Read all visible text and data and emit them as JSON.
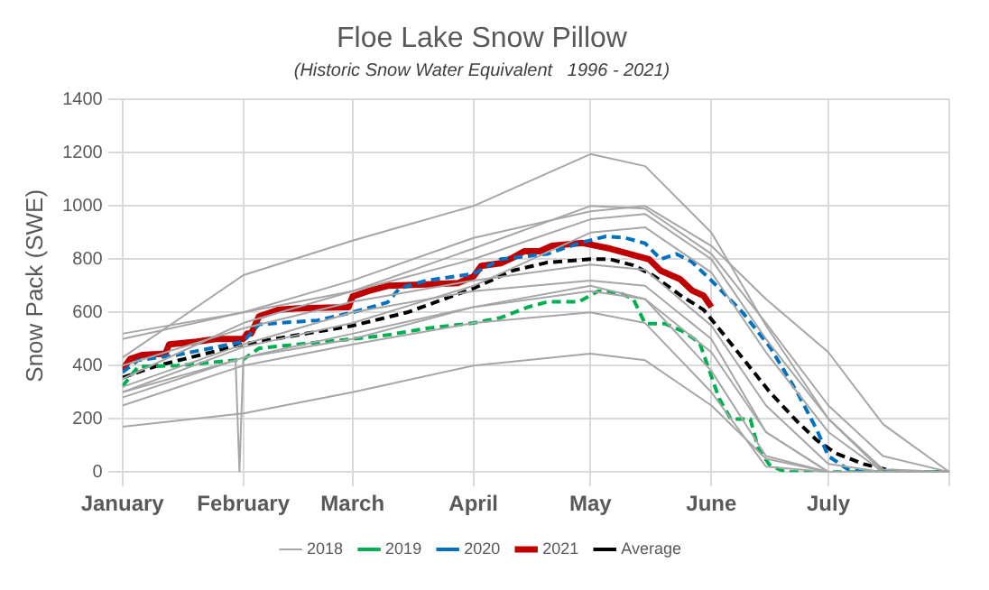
{
  "chart_data": {
    "type": "line",
    "title": "Floe Lake Snow Pillow",
    "subtitle": "(Historic Snow Water Equivalent   1996 - 2021)",
    "ylabel": "Snow Pack (SWE)",
    "x": [
      "--01-01",
      "--02-01",
      "--03-01",
      "--04-01",
      "--05-01",
      "--05-15",
      "--06-01",
      "--06-15",
      "--07-01",
      "--07-15",
      "--08-01"
    ],
    "xlim": [
      "--01-01",
      "--08-01"
    ],
    "xticks": [
      {
        "value": "--01-01",
        "label": "January"
      },
      {
        "value": "--02-01",
        "label": "February"
      },
      {
        "value": "--03-01",
        "label": "March"
      },
      {
        "value": "--04-01",
        "label": "April"
      },
      {
        "value": "--05-01",
        "label": "May"
      },
      {
        "value": "--06-01",
        "label": "June"
      },
      {
        "value": "--07-01",
        "label": "July"
      },
      {
        "value": "--08-01",
        "label": null
      }
    ],
    "ylim": [
      0,
      1400
    ],
    "yticks": [
      0,
      200,
      400,
      600,
      800,
      1000,
      1200,
      1400
    ],
    "grid": true,
    "legend": "bottom",
    "marker": "none",
    "series": [
      {
        "color": "#a6a6a6",
        "values": [
          430,
          740,
          870,
          1000,
          1195,
          1150,
          900,
          550,
          200,
          0,
          0
        ]
      },
      {
        "color": "#a6a6a6",
        "values": [
          500,
          600,
          720,
          880,
          980,
          1000,
          850,
          650,
          450,
          180,
          0
        ]
      },
      {
        "color": "#a6a6a6",
        "values": [
          170,
          220,
          300,
          400,
          445,
          420,
          250,
          50,
          0,
          0,
          0
        ]
      },
      {
        "color": "#a6a6a6",
        "values": [
          280,
          430,
          500,
          620,
          680,
          650,
          450,
          150,
          0,
          0,
          0
        ]
      },
      {
        "color": "#a6a6a6",
        "values": [
          520,
          600,
          680,
          800,
          950,
          970,
          800,
          500,
          200,
          10,
          0
        ]
      },
      {
        "color": "#a6a6a6",
        "values": [
          250,
          400,
          480,
          560,
          600,
          560,
          300,
          20,
          0,
          0,
          0
        ]
      },
      {
        "color": "#a6a6a6",
        "values": [
          350,
          560,
          680,
          840,
          1000,
          990,
          820,
          560,
          250,
          60,
          0
        ]
      },
      {
        "color": "#a6a6a6",
        "values": [
          400,
          540,
          640,
          720,
          780,
          760,
          550,
          250,
          30,
          0,
          0
        ]
      },
      {
        "color": "#a6a6a6",
        "values": [
          320,
          480,
          600,
          680,
          720,
          700,
          500,
          150,
          0,
          0,
          0
        ]
      },
      {
        "color": "#a6a6a6",
        "x": [
          "--01-01",
          "--01-30",
          "--01-31",
          "--02-01",
          "--03-01",
          "--04-01",
          "--05-01",
          "--05-15",
          "--06-01",
          "--06-15",
          "--07-01"
        ],
        "values": [
          300,
          420,
          0,
          430,
          520,
          620,
          700,
          650,
          380,
          60,
          0
        ]
      },
      {
        "name": "2018",
        "color": "#a6a6a6",
        "values": [
          300,
          470,
          560,
          700,
          900,
          920,
          750,
          450,
          150,
          0,
          0
        ]
      },
      {
        "name": "2019",
        "color": "#00b050",
        "line_style": "dashed",
        "x": [
          "--01-01",
          "--01-05",
          "--01-15",
          "--02-01",
          "--02-05",
          "--02-15",
          "--03-01",
          "--03-10",
          "--03-20",
          "--04-01",
          "--04-08",
          "--04-15",
          "--04-20",
          "--04-28",
          "--05-03",
          "--05-09",
          "--05-12",
          "--05-15",
          "--05-20",
          "--05-25",
          "--05-29",
          "--06-03",
          "--06-06",
          "--06-11",
          "--06-13",
          "--06-16",
          "--06-20",
          "--08-01"
        ],
        "values": [
          322,
          396,
          400,
          423,
          465,
          480,
          500,
          515,
          540,
          560,
          580,
          620,
          640,
          640,
          680,
          670,
          650,
          558,
          558,
          527,
          485,
          276,
          199,
          199,
          88,
          25,
          0,
          0
        ]
      },
      {
        "name": "2020",
        "color": "#0070c0",
        "line_style": "dashed",
        "x": [
          "--01-01",
          "--01-05",
          "--01-15",
          "--02-01",
          "--02-05",
          "--02-20",
          "--03-01",
          "--03-10",
          "--03-13",
          "--03-20",
          "--04-01",
          "--04-08",
          "--04-20",
          "--04-28",
          "--05-05",
          "--05-10",
          "--05-15",
          "--05-19",
          "--05-23",
          "--05-27",
          "--06-01",
          "--06-09",
          "--06-16",
          "--06-23",
          "--06-28",
          "--07-01",
          "--07-06",
          "--07-10",
          "--08-01"
        ],
        "values": [
          375,
          420,
          440,
          490,
          555,
          570,
          600,
          638,
          690,
          720,
          745,
          800,
          820,
          860,
          886,
          880,
          860,
          800,
          820,
          790,
          720,
          600,
          470,
          300,
          160,
          60,
          10,
          0,
          0
        ]
      },
      {
        "name": "2021",
        "color": "#c00000",
        "line_style": "solid",
        "x": [
          "--01-01",
          "--01-03",
          "--01-06",
          "--01-12",
          "--01-13",
          "--01-20",
          "--01-25",
          "--02-01",
          "--02-02",
          "--02-03",
          "--02-05",
          "--02-10",
          "--02-15",
          "--02-28",
          "--03-01",
          "--03-05",
          "--03-10",
          "--03-20",
          "--03-28",
          "--04-01",
          "--04-03",
          "--04-08",
          "--04-11",
          "--04-14",
          "--04-18",
          "--04-21",
          "--04-29",
          "--05-06",
          "--05-16",
          "--05-19",
          "--05-24",
          "--05-27",
          "--05-30",
          "--06-01"
        ],
        "values": [
          385,
          425,
          440,
          445,
          480,
          490,
          500,
          500,
          520,
          520,
          585,
          610,
          615,
          620,
          660,
          680,
          700,
          705,
          710,
          735,
          775,
          785,
          805,
          830,
          830,
          850,
          861,
          840,
          800,
          757,
          725,
          683,
          663,
          620
        ]
      },
      {
        "name": "Average",
        "color": "#000000",
        "line_style": "dashed",
        "x": [
          "--01-01",
          "--01-10",
          "--02-01",
          "--03-01",
          "--03-15",
          "--04-01",
          "--04-11",
          "--04-20",
          "--05-01",
          "--05-06",
          "--05-12",
          "--05-17",
          "--05-24",
          "--05-30",
          "--06-04",
          "--06-10",
          "--06-16",
          "--06-23",
          "--06-28",
          "--07-03",
          "--07-10",
          "--07-17",
          "--07-22",
          "--08-01"
        ],
        "values": [
          355,
          400,
          480,
          550,
          600,
          690,
          757,
          788,
          800,
          800,
          777,
          740,
          665,
          610,
          520,
          410,
          300,
          190,
          120,
          70,
          30,
          5,
          0,
          0
        ]
      }
    ]
  }
}
